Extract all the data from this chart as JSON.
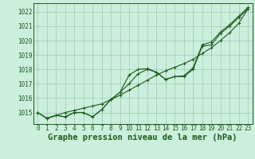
{
  "title": "Graphe pression niveau de la mer (hPa)",
  "background_color": "#cceedd",
  "line_color": "#1a5c1a",
  "x_labels": [
    "0",
    "1",
    "2",
    "3",
    "4",
    "5",
    "6",
    "7",
    "8",
    "9",
    "10",
    "11",
    "12",
    "13",
    "14",
    "15",
    "16",
    "17",
    "18",
    "19",
    "20",
    "21",
    "22",
    "23"
  ],
  "hours": [
    0,
    1,
    2,
    3,
    4,
    5,
    6,
    7,
    8,
    9,
    10,
    11,
    12,
    13,
    14,
    15,
    16,
    17,
    18,
    19,
    20,
    21,
    22,
    23
  ],
  "series1": [
    1015.0,
    1014.6,
    1014.8,
    1014.7,
    1015.0,
    1015.0,
    1014.7,
    1015.2,
    1015.9,
    1016.4,
    1017.0,
    1017.7,
    1018.0,
    1017.8,
    1017.3,
    1017.5,
    1017.5,
    1018.0,
    1019.6,
    1019.7,
    1020.5,
    1021.0,
    1021.6,
    1022.2
  ],
  "series2": [
    1015.0,
    1014.6,
    1014.8,
    1015.0,
    1015.15,
    1015.3,
    1015.45,
    1015.6,
    1015.9,
    1016.2,
    1016.55,
    1016.9,
    1017.25,
    1017.6,
    1017.9,
    1018.15,
    1018.4,
    1018.7,
    1019.1,
    1019.5,
    1020.0,
    1020.55,
    1021.2,
    1022.2
  ],
  "series3": [
    1015.0,
    1014.6,
    1014.8,
    1014.7,
    1015.0,
    1015.0,
    1014.7,
    1015.2,
    1015.9,
    1016.4,
    1017.6,
    1018.0,
    1018.05,
    1017.8,
    1017.3,
    1017.5,
    1017.55,
    1018.1,
    1019.7,
    1019.9,
    1020.6,
    1021.1,
    1021.7,
    1022.3
  ],
  "ylim": [
    1014.2,
    1022.6
  ],
  "yticks": [
    1015,
    1016,
    1017,
    1018,
    1019,
    1020,
    1021,
    1022
  ],
  "grid_color": "#99ccaa",
  "title_fontsize": 7.5,
  "tick_fontsize": 5.5
}
